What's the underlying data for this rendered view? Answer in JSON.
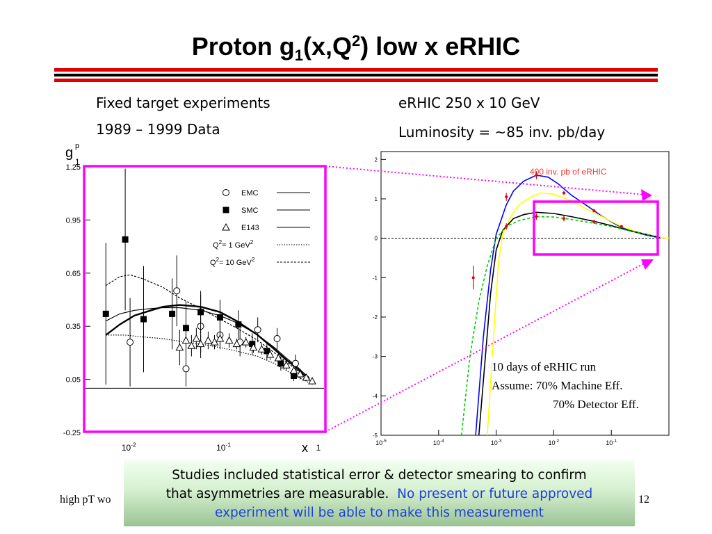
{
  "slide": {
    "title_main": "Proton g",
    "title_sub": "1",
    "title_mid": "(x,Q",
    "title_sup": "2",
    "title_end": ") low x eRHIC",
    "left_heading_1": "Fixed target experiments",
    "left_heading_2": "1989 – 1999 Data",
    "right_heading_1": "eRHIC 250 x 10 GeV",
    "right_heading_2": "Luminosity = ~85 inv. pb/day",
    "footer_left": "high pT wo",
    "footer_right": "12",
    "note_line1": "Studies included statistical error & detector smearing to confirm",
    "note_line2_black": "that asymmetries are measurable.",
    "note_line2_blue": "No present or future approved",
    "note_line3_blue": "experiment will be able to make this measurement",
    "erhic_note_1": "10 days of eRHIC run",
    "erhic_note_2": "Assume: 70% Machine Eff.",
    "erhic_note_3": "70% Detector Eff.",
    "colors": {
      "red_rule": "#e00000",
      "magenta": "#ff00ff",
      "note_blue": "#1f3fd8"
    }
  },
  "chart_data": [
    {
      "type": "scatter",
      "xscale": "log",
      "xlim": [
        0.003,
        1
      ],
      "ylim": [
        -0.25,
        1.25
      ],
      "xlabel": "x",
      "ylabel_main": "g",
      "ylabel_sup": "p",
      "ylabel_sub": "1",
      "yticks": [
        "1.25",
        "0.95",
        "0.65",
        "0.35",
        "0.05",
        "-0.25"
      ],
      "xtick_labels": [
        {
          "base": "10",
          "exp": "-2",
          "x": 0.01
        },
        {
          "base": "10",
          "exp": "-1",
          "x": 0.1
        },
        {
          "base": "1",
          "exp": "",
          "x": 1
        }
      ],
      "legend": [
        {
          "symbol": "open-circle",
          "label": "EMC"
        },
        {
          "symbol": "filled-square",
          "label": "SMC"
        },
        {
          "symbol": "open-triangle",
          "label": "E143"
        },
        {
          "symbol": "dotted-line",
          "label_pre": "Q",
          "label_sup": "2",
          "label_post": "= 1 GeV",
          "label_sup2": "2"
        },
        {
          "symbol": "dashed-line",
          "label_pre": "Q",
          "label_sup": "2",
          "label_post": "= 10 GeV",
          "label_sup2": "2"
        }
      ],
      "series": [
        {
          "name": "EMC",
          "marker": "open-circle",
          "points": [
            {
              "x": 0.009,
              "y": 0.26,
              "err": 0.25
            },
            {
              "x": 0.028,
              "y": 0.55,
              "err": 0.2
            },
            {
              "x": 0.035,
              "y": 0.11,
              "err": 0.1
            },
            {
              "x": 0.05,
              "y": 0.35,
              "err": 0.18
            },
            {
              "x": 0.08,
              "y": 0.3,
              "err": 0.08
            },
            {
              "x": 0.13,
              "y": 0.26,
              "err": 0.08
            },
            {
              "x": 0.2,
              "y": 0.33,
              "err": 0.07
            },
            {
              "x": 0.32,
              "y": 0.28,
              "err": 0.06
            },
            {
              "x": 0.5,
              "y": 0.14,
              "err": 0.05
            }
          ]
        },
        {
          "name": "SMC",
          "marker": "filled-square",
          "points": [
            {
              "x": 0.005,
              "y": 0.42,
              "err": 0.4
            },
            {
              "x": 0.008,
              "y": 0.84,
              "err": 0.4
            },
            {
              "x": 0.0125,
              "y": 0.39,
              "err": 0.3
            },
            {
              "x": 0.025,
              "y": 0.42,
              "err": 0.2
            },
            {
              "x": 0.035,
              "y": 0.34,
              "err": 0.15
            },
            {
              "x": 0.05,
              "y": 0.43,
              "err": 0.12
            },
            {
              "x": 0.08,
              "y": 0.4,
              "err": 0.1
            },
            {
              "x": 0.125,
              "y": 0.36,
              "err": 0.08
            },
            {
              "x": 0.175,
              "y": 0.25,
              "err": 0.06
            },
            {
              "x": 0.25,
              "y": 0.21,
              "err": 0.05
            },
            {
              "x": 0.35,
              "y": 0.14,
              "err": 0.04
            },
            {
              "x": 0.48,
              "y": 0.07,
              "err": 0.03
            }
          ]
        },
        {
          "name": "E143",
          "marker": "open-triangle",
          "points": [
            {
              "x": 0.03,
              "y": 0.23,
              "err": 0.1
            },
            {
              "x": 0.035,
              "y": 0.27,
              "err": 0.06
            },
            {
              "x": 0.04,
              "y": 0.24,
              "err": 0.06
            },
            {
              "x": 0.045,
              "y": 0.28,
              "err": 0.06
            },
            {
              "x": 0.05,
              "y": 0.25,
              "err": 0.05
            },
            {
              "x": 0.06,
              "y": 0.27,
              "err": 0.05
            },
            {
              "x": 0.07,
              "y": 0.26,
              "err": 0.04
            },
            {
              "x": 0.08,
              "y": 0.28,
              "err": 0.04
            },
            {
              "x": 0.1,
              "y": 0.27,
              "err": 0.04
            },
            {
              "x": 0.12,
              "y": 0.25,
              "err": 0.03
            },
            {
              "x": 0.15,
              "y": 0.26,
              "err": 0.03
            },
            {
              "x": 0.18,
              "y": 0.23,
              "err": 0.03
            },
            {
              "x": 0.22,
              "y": 0.22,
              "err": 0.03
            },
            {
              "x": 0.27,
              "y": 0.19,
              "err": 0.03
            },
            {
              "x": 0.33,
              "y": 0.17,
              "err": 0.03
            },
            {
              "x": 0.4,
              "y": 0.13,
              "err": 0.03
            },
            {
              "x": 0.48,
              "y": 0.1,
              "err": 0.03
            },
            {
              "x": 0.56,
              "y": 0.08,
              "err": 0.03
            },
            {
              "x": 0.65,
              "y": 0.06,
              "err": 0.02
            },
            {
              "x": 0.75,
              "y": 0.04,
              "err": 0.02
            }
          ]
        }
      ],
      "curves": [
        {
          "style": "thick-solid",
          "points": [
            [
              0.005,
              0.3
            ],
            [
              0.007,
              0.36
            ],
            [
              0.01,
              0.41
            ],
            [
              0.015,
              0.44
            ],
            [
              0.02,
              0.46
            ],
            [
              0.03,
              0.47
            ],
            [
              0.05,
              0.46
            ],
            [
              0.08,
              0.43
            ],
            [
              0.12,
              0.38
            ],
            [
              0.2,
              0.3
            ],
            [
              0.3,
              0.22
            ],
            [
              0.4,
              0.16
            ],
            [
              0.5,
              0.12
            ],
            [
              0.6,
              0.08
            ],
            [
              0.7,
              0.05
            ]
          ]
        },
        {
          "style": "thin-solid",
          "points": [
            [
              0.005,
              0.38
            ],
            [
              0.007,
              0.42
            ],
            [
              0.01,
              0.44
            ],
            [
              0.015,
              0.45
            ],
            [
              0.02,
              0.455
            ],
            [
              0.03,
              0.455
            ],
            [
              0.05,
              0.44
            ],
            [
              0.08,
              0.41
            ],
            [
              0.12,
              0.37
            ],
            [
              0.2,
              0.3
            ],
            [
              0.3,
              0.23
            ],
            [
              0.4,
              0.17
            ],
            [
              0.5,
              0.13
            ],
            [
              0.6,
              0.09
            ],
            [
              0.7,
              0.06
            ]
          ]
        },
        {
          "style": "dotted",
          "points": [
            [
              0.005,
              0.3
            ],
            [
              0.008,
              0.3
            ],
            [
              0.012,
              0.29
            ],
            [
              0.02,
              0.28
            ],
            [
              0.03,
              0.265
            ],
            [
              0.05,
              0.25
            ],
            [
              0.08,
              0.23
            ],
            [
              0.12,
              0.21
            ],
            [
              0.2,
              0.18
            ],
            [
              0.3,
              0.14
            ],
            [
              0.4,
              0.1
            ],
            [
              0.55,
              0.06
            ],
            [
              0.7,
              0.03
            ]
          ]
        },
        {
          "style": "dashed",
          "points": [
            [
              0.005,
              0.58
            ],
            [
              0.007,
              0.63
            ],
            [
              0.009,
              0.64
            ],
            [
              0.012,
              0.62
            ],
            [
              0.02,
              0.57
            ],
            [
              0.03,
              0.51
            ],
            [
              0.05,
              0.45
            ],
            [
              0.08,
              0.39
            ],
            [
              0.12,
              0.34
            ],
            [
              0.2,
              0.27
            ],
            [
              0.3,
              0.2
            ],
            [
              0.4,
              0.15
            ],
            [
              0.55,
              0.09
            ],
            [
              0.7,
              0.05
            ]
          ]
        }
      ],
      "baseline_y": 0
    },
    {
      "type": "line",
      "xscale": "log",
      "xlim": [
        1e-05,
        1
      ],
      "ylim": [
        -5,
        2.2
      ],
      "yticks": [
        "2",
        "1",
        "0",
        "-1",
        "-2",
        "-3",
        "-4",
        "-5"
      ],
      "xtick_labels": [
        {
          "base": "10",
          "exp": "-5",
          "x": 1e-05
        },
        {
          "base": "10",
          "exp": "-4",
          "x": 0.0001
        },
        {
          "base": "10",
          "exp": "-3",
          "x": 0.001
        },
        {
          "base": "10",
          "exp": "-2",
          "x": 0.01
        },
        {
          "base": "10",
          "exp": "-1",
          "x": 0.1
        }
      ],
      "annotation": "400 inv. pb of eRHIC",
      "series": [
        {
          "color": "#0000ff",
          "style": "solid",
          "points": [
            [
              0.00044,
              -5
            ],
            [
              0.0006,
              -2.5
            ],
            [
              0.0008,
              -0.8
            ],
            [
              0.001,
              0.1
            ],
            [
              0.0015,
              0.85
            ],
            [
              0.002,
              1.2
            ],
            [
              0.003,
              1.45
            ],
            [
              0.005,
              1.6
            ],
            [
              0.008,
              1.55
            ],
            [
              0.012,
              1.38
            ],
            [
              0.02,
              1.1
            ],
            [
              0.04,
              0.8
            ],
            [
              0.07,
              0.55
            ],
            [
              0.12,
              0.35
            ],
            [
              0.2,
              0.2
            ],
            [
              0.4,
              0.08
            ],
            [
              0.7,
              0.01
            ]
          ]
        },
        {
          "color": "#ffff00",
          "style": "solid",
          "points": [
            [
              0.0007,
              -5
            ],
            [
              0.0009,
              -2.5
            ],
            [
              0.0011,
              -0.6
            ],
            [
              0.0013,
              0.1
            ],
            [
              0.0018,
              0.55
            ],
            [
              0.0025,
              0.85
            ],
            [
              0.004,
              1.05
            ],
            [
              0.006,
              1.15
            ],
            [
              0.01,
              1.12
            ],
            [
              0.02,
              0.95
            ],
            [
              0.04,
              0.72
            ],
            [
              0.08,
              0.5
            ],
            [
              0.15,
              0.3
            ],
            [
              0.3,
              0.15
            ],
            [
              0.7,
              0.02
            ]
          ]
        },
        {
          "color": "#000000",
          "style": "solid",
          "points": [
            [
              0.0005,
              -5
            ],
            [
              0.00065,
              -3
            ],
            [
              0.0008,
              -1.4
            ],
            [
              0.001,
              -0.3
            ],
            [
              0.0013,
              0.2
            ],
            [
              0.002,
              0.5
            ],
            [
              0.003,
              0.6
            ],
            [
              0.005,
              0.66
            ],
            [
              0.01,
              0.63
            ],
            [
              0.02,
              0.55
            ],
            [
              0.05,
              0.43
            ],
            [
              0.1,
              0.32
            ],
            [
              0.2,
              0.2
            ],
            [
              0.4,
              0.1
            ],
            [
              0.7,
              0.02
            ]
          ]
        },
        {
          "color": "#00cc00",
          "style": "dashed",
          "points": [
            [
              0.00025,
              -5
            ],
            [
              0.00035,
              -3
            ],
            [
              0.0005,
              -1.6
            ],
            [
              0.0007,
              -0.7
            ],
            [
              0.001,
              0.0
            ],
            [
              0.0015,
              0.3
            ],
            [
              0.0025,
              0.45
            ],
            [
              0.005,
              0.55
            ],
            [
              0.01,
              0.54
            ],
            [
              0.02,
              0.48
            ],
            [
              0.05,
              0.38
            ],
            [
              0.1,
              0.3
            ],
            [
              0.2,
              0.19
            ],
            [
              0.4,
              0.1
            ],
            [
              0.7,
              0.02
            ]
          ]
        }
      ],
      "points": [
        {
          "x": 0.0004,
          "y": -1.0,
          "err": 0.3
        },
        {
          "x": 0.0015,
          "y": 1.05,
          "err": 0.1
        },
        {
          "x": 0.0015,
          "y": 0.3,
          "err": 0.08
        },
        {
          "x": 0.005,
          "y": 1.6,
          "err": 0.1
        },
        {
          "x": 0.005,
          "y": 0.55,
          "err": 0.08
        },
        {
          "x": 0.015,
          "y": 0.5,
          "err": 0.07
        },
        {
          "x": 0.015,
          "y": 1.15,
          "err": 0.05
        },
        {
          "x": 0.05,
          "y": 0.42,
          "err": 0.05
        },
        {
          "x": 0.05,
          "y": 0.7,
          "err": 0.04
        },
        {
          "x": 0.15,
          "y": 0.3,
          "err": 0.03
        }
      ],
      "baseline_y": 0
    }
  ]
}
